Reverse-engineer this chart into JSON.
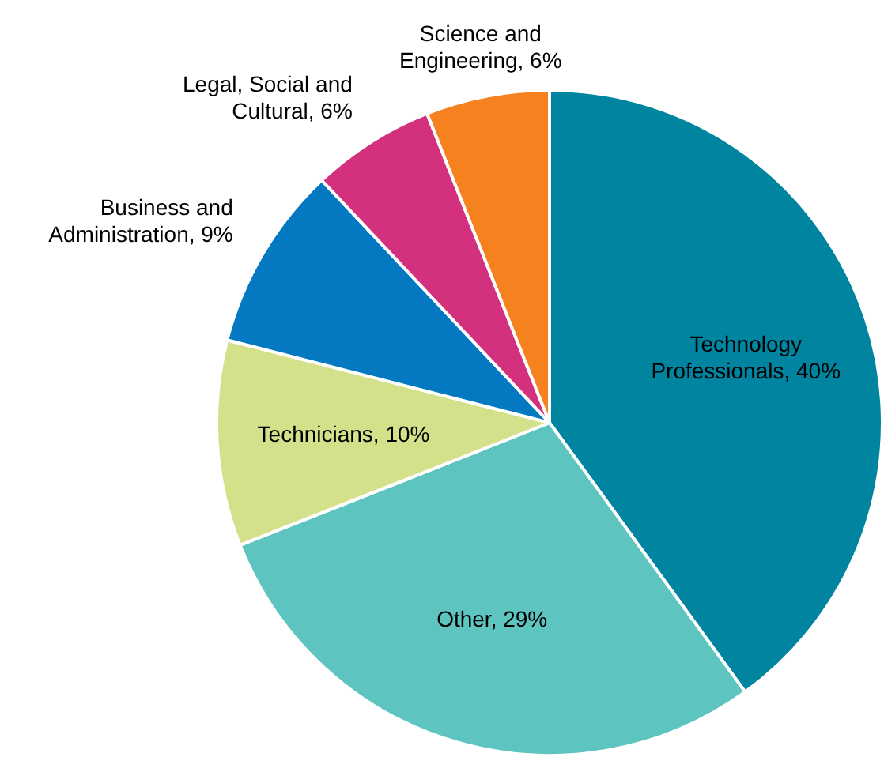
{
  "chart_data": {
    "type": "pie",
    "categories": [
      "Technology Professionals",
      "Other",
      "Technicians",
      "Business and Administration",
      "Legal, Social and Cultural",
      "Science and Engineering"
    ],
    "values": [
      40,
      29,
      10,
      9,
      6,
      6
    ],
    "value_labels": [
      "40%",
      "29%",
      "10%",
      "9%",
      "6%",
      "6%"
    ],
    "colors": [
      "#00849f",
      "#5ec4c0",
      "#d4e08a",
      "#0478c0",
      "#d3307e",
      "#f5821f"
    ]
  }
}
